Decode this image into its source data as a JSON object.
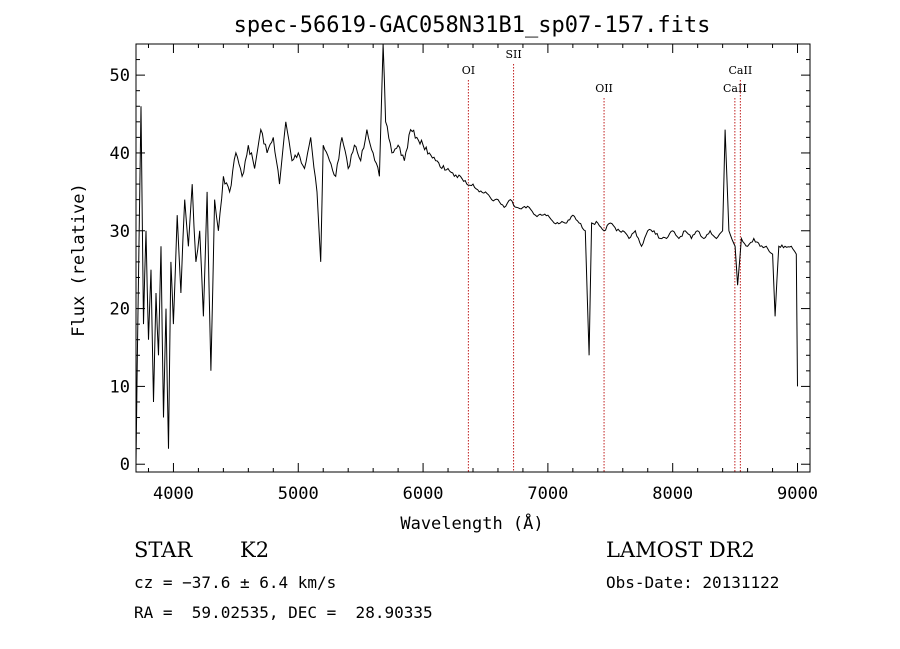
{
  "chart_data": {
    "type": "line",
    "title": "spec-56619-GAC058N31B1_sp07-157.fits",
    "xlabel": "Wavelength (Å)",
    "ylabel": "Flux (relative)",
    "xlim": [
      3700,
      9100
    ],
    "ylim": [
      -1,
      54
    ],
    "xticks": [
      4000,
      5000,
      6000,
      7000,
      8000,
      9000
    ],
    "yticks": [
      0,
      10,
      20,
      30,
      40,
      50
    ],
    "line_color": "#000000",
    "marker_color": "#c02020",
    "spectral_lines": [
      {
        "name": "OI",
        "wavelength": 6363
      },
      {
        "name": "SII",
        "wavelength": 6725
      },
      {
        "name": "OII",
        "wavelength": 7450
      },
      {
        "name": "CaII",
        "wavelength": 8498
      },
      {
        "name": "CaII",
        "wavelength": 8542
      }
    ],
    "spectrum": {
      "x": [
        3700,
        3720,
        3740,
        3760,
        3780,
        3800,
        3820,
        3840,
        3860,
        3880,
        3900,
        3920,
        3940,
        3960,
        3980,
        4000,
        4030,
        4060,
        4090,
        4120,
        4150,
        4180,
        4210,
        4240,
        4270,
        4300,
        4330,
        4360,
        4400,
        4450,
        4500,
        4550,
        4600,
        4650,
        4700,
        4750,
        4800,
        4850,
        4900,
        4950,
        5000,
        5050,
        5100,
        5150,
        5180,
        5200,
        5250,
        5300,
        5350,
        5400,
        5450,
        5500,
        5550,
        5600,
        5650,
        5680,
        5700,
        5750,
        5800,
        5850,
        5900,
        5950,
        6000,
        6050,
        6100,
        6150,
        6200,
        6250,
        6300,
        6350,
        6400,
        6450,
        6500,
        6550,
        6600,
        6650,
        6700,
        6750,
        6800,
        6850,
        6900,
        6950,
        7000,
        7050,
        7100,
        7150,
        7200,
        7250,
        7300,
        7330,
        7350,
        7400,
        7450,
        7500,
        7550,
        7600,
        7650,
        7700,
        7750,
        7800,
        7850,
        7900,
        7950,
        8000,
        8050,
        8100,
        8150,
        8200,
        8250,
        8300,
        8350,
        8400,
        8420,
        8450,
        8500,
        8520,
        8550,
        8600,
        8650,
        8700,
        8750,
        8800,
        8820,
        8850,
        8900,
        8950,
        8990,
        9000
      ],
      "y": [
        0,
        24,
        46,
        18,
        30,
        16,
        25,
        8,
        22,
        14,
        28,
        6,
        20,
        2,
        26,
        18,
        32,
        22,
        34,
        28,
        36,
        26,
        30,
        19,
        35,
        12,
        34,
        30,
        37,
        35,
        40,
        37,
        41,
        38,
        43,
        40,
        42,
        36,
        44,
        39,
        40,
        38,
        42,
        35,
        26,
        41,
        39,
        37,
        42,
        38,
        41,
        39,
        43,
        40,
        37,
        54,
        44,
        40,
        41,
        39,
        43,
        42,
        41,
        40,
        39,
        38,
        38,
        37,
        37,
        36,
        36,
        35,
        35,
        34,
        34,
        33,
        34,
        33,
        33,
        33,
        32,
        32,
        32,
        31,
        31,
        31,
        32,
        31,
        30,
        14,
        31,
        31,
        30,
        31,
        30,
        30,
        29,
        30,
        28,
        30,
        30,
        29,
        29,
        30,
        29,
        30,
        29,
        30,
        29,
        30,
        29,
        30,
        43,
        30,
        28,
        23,
        29,
        28,
        29,
        28,
        28,
        27,
        19,
        28,
        28,
        28,
        27,
        10
      ]
    }
  },
  "info": {
    "object_type": "STAR",
    "subclass": "K2",
    "survey": "LAMOST DR2",
    "redshift_line": "cz = −37.6 ± 6.4 km/s",
    "obs_date": "Obs-Date: 20131122",
    "coords": "RA =  59.02535, DEC =  28.90335"
  }
}
